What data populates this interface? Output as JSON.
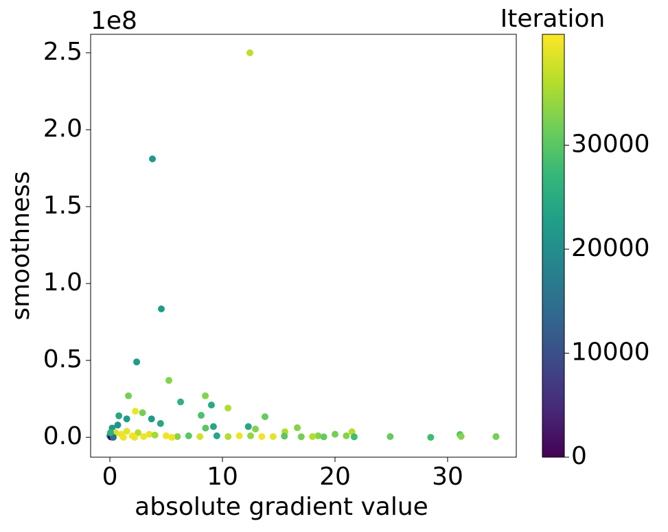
{
  "chart_data": {
    "type": "scatter",
    "x_label": "absolute gradient value",
    "y_label": "smoothness",
    "y_offset_label": "1e8",
    "colorbar_label": "Iteration",
    "colormap": "viridis",
    "x": [
      12.44,
      3.78,
      4.57,
      2.38,
      5.24,
      1.65,
      6.28,
      8.48,
      9.02,
      10.49,
      8.11,
      13.78,
      2.26,
      2.9,
      0.8,
      1.5,
      3.7,
      4.5,
      9.2,
      8.5,
      12.3,
      16.65,
      12.93,
      15.55,
      21.5,
      20.0,
      18.5,
      24.9,
      28.5,
      31.1,
      31.2,
      34.3,
      0,
      0.2,
      0.5,
      1.0,
      1.5,
      2.0,
      2.5,
      3.0,
      3.5,
      4.0,
      5.0,
      6.0,
      7.0,
      8.0,
      9.5,
      10.5,
      11.5,
      12.5,
      13.5,
      14.5,
      15.5,
      17.0,
      18.0,
      19.0,
      21.0,
      21.7,
      0.1,
      0.3,
      0.7,
      1.2,
      2.2,
      5.5,
      0.05
    ],
    "values": [
      2.5,
      1.81,
      0.835,
      0.49,
      0.37,
      0.27,
      0.23,
      0.27,
      0.21,
      0.19,
      0.143,
      0.134,
      0.17,
      0.16,
      0.14,
      0.12,
      0.12,
      0.09,
      0.07,
      0.06,
      0.07,
      0.0625,
      0.054,
      0.036,
      0.036,
      0.02,
      0.01,
      0.005,
      0.0,
      0.018,
      0.006,
      0.005,
      0.01,
      0.06,
      0.03,
      0.02,
      0.04,
      0.01,
      0.03,
      0.005,
      0.02,
      0.015,
      0.01,
      0.005,
      0.01,
      0.005,
      0.01,
      0.005,
      0.01,
      0.01,
      0.005,
      0.005,
      0.008,
      0.004,
      0.005,
      0.003,
      0.01,
      0.003,
      0.002,
      0.0,
      0.08,
      0.0,
      0.0,
      0.0,
      0.03
    ],
    "color_values": [
      36500,
      22000,
      22500,
      22000,
      33000,
      32000,
      26000,
      33000,
      24500,
      36000,
      29000,
      31000,
      39500,
      32000,
      24000,
      22500,
      22000,
      24000,
      24000,
      30000,
      24000,
      33000,
      33000,
      36000,
      36000,
      32000,
      33000,
      31000,
      28000,
      29000,
      33000,
      32000,
      20000,
      22000,
      38000,
      39500,
      39000,
      39800,
      36000,
      39800,
      39000,
      35000,
      39800,
      33000,
      30000,
      38000,
      24000,
      36000,
      39500,
      34000,
      39800,
      39000,
      30000,
      32000,
      36000,
      31000,
      33000,
      28000,
      1000,
      15000,
      21000,
      39800,
      39800,
      39600,
      26000
    ],
    "xlim": [
      -1.71,
      36.1
    ],
    "xticks": [
      0,
      10,
      20,
      30
    ],
    "ylim": [
      -0.129,
      2.62
    ],
    "yticks": [
      {
        "value": 0,
        "label": "0.0"
      },
      0.5,
      {
        "value": 1,
        "label": "1.0"
      },
      1.5,
      {
        "value": 2,
        "label": "2.0"
      },
      2.5
    ],
    "clim": [
      0,
      40660
    ],
    "cticks": [
      0,
      10000,
      20000,
      30000
    ]
  }
}
